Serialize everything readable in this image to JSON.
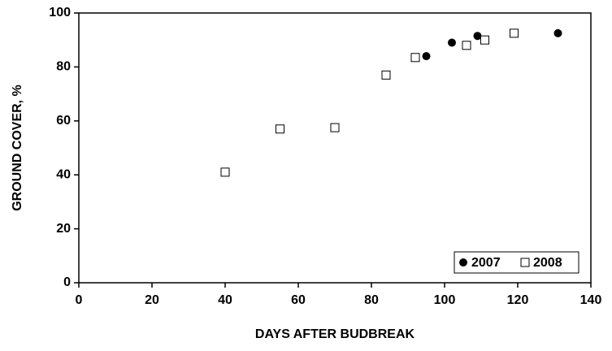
{
  "chart_data": {
    "type": "scatter",
    "x_label": "DAYS AFTER BUDBREAK",
    "y_label": "GROUND COVER, %",
    "series": [
      {
        "name": "2007",
        "color": "#000000",
        "marker": "filled-circle",
        "x": [
          95,
          102,
          109,
          131
        ],
        "values": [
          84,
          89,
          91.5,
          92.5
        ]
      },
      {
        "name": "2008",
        "color": "#000000",
        "marker": "open-square",
        "x": [
          40,
          55,
          70,
          84,
          92,
          106,
          111,
          119
        ],
        "values": [
          41,
          57,
          57.5,
          77,
          83.5,
          88,
          90,
          92.5
        ]
      }
    ],
    "xlim": [
      0,
      140
    ],
    "xticks": [
      0,
      20,
      40,
      60,
      80,
      100,
      120,
      140
    ],
    "ylim": [
      0,
      100
    ],
    "yticks": [
      0,
      20,
      40,
      60,
      80,
      100
    ],
    "grid": false,
    "legend_position": "lower-right"
  }
}
